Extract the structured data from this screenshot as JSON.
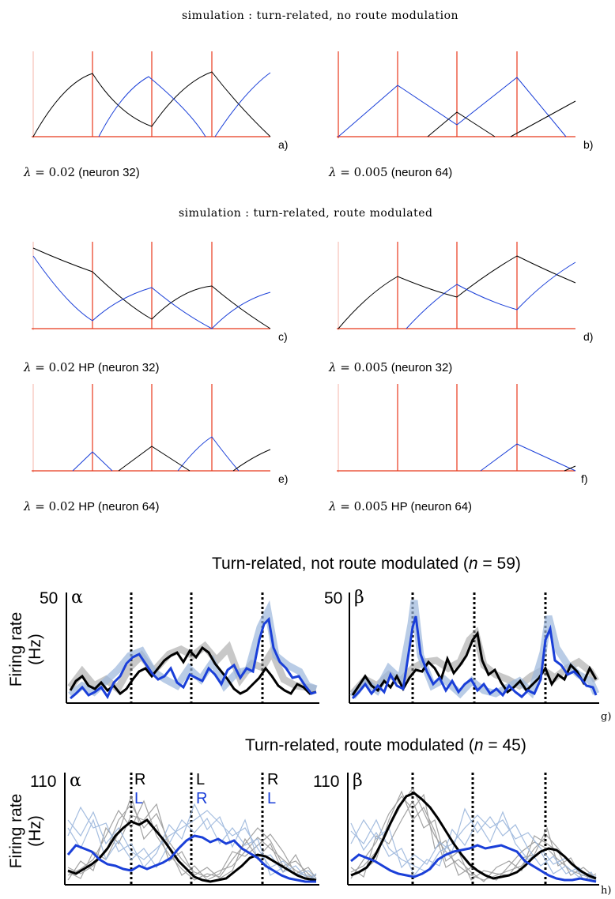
{
  "simulation": {
    "title_top": "simulation : turn-related, no route modulation",
    "title_mid": "simulation : turn-related, route modulated"
  },
  "panels": {
    "a": {
      "label": "a)",
      "caption_lambda": "λ",
      "caption_eq": " = ",
      "caption_value": "0.02",
      "caption_rest": " (neuron 32)"
    },
    "b": {
      "label": "b)",
      "caption_lambda": "λ",
      "caption_eq": " = ",
      "caption_value": "0.005",
      "caption_rest": " (neuron 64)"
    },
    "c": {
      "label": "c)",
      "caption_lambda": "λ",
      "caption_eq": " = ",
      "caption_value": "0.02",
      "caption_rest": " HP (neuron 32)"
    },
    "d": {
      "label": "d)",
      "caption_lambda": "λ",
      "caption_eq": " = ",
      "caption_value": "0.005",
      "caption_rest": " (neuron 32)"
    },
    "e": {
      "label": "e)",
      "caption_lambda": "λ",
      "caption_eq": " = ",
      "caption_value": "0.02",
      "caption_rest": " HP (neuron 64)"
    },
    "f": {
      "label": "f)",
      "caption_lambda": "λ",
      "caption_eq": " = ",
      "caption_value": "0.005",
      "caption_rest": " HP (neuron 64)"
    }
  },
  "recordings": {
    "g": {
      "title_prefix": "Turn-related, not route modulated (",
      "title_n": "n",
      "title_suffix": " = 59)",
      "ylabel_line1": "Firing rate",
      "ylabel_line2": "(Hz)",
      "ymax": "50",
      "left_greek": "α",
      "right_greek": "β",
      "label": "g)"
    },
    "h": {
      "title_prefix": "Turn-related, route modulated (",
      "title_n": "n",
      "title_suffix": " = 45)",
      "ylabel_line1": "Firing rate",
      "ylabel_line2": "(Hz)",
      "ymax": "110",
      "left_greek": "α",
      "right_greek": "β",
      "label": "h)",
      "turns_black": [
        "R",
        "L",
        "R"
      ],
      "turns_blue": [
        "L",
        "R",
        "L"
      ]
    }
  },
  "colors": {
    "black_series": "#000000",
    "blue_series": "#1a3fd8",
    "red_lines": "#e8371a",
    "grey_traces": "#8c8c8c",
    "lightblue_traces": "#9bb6dc"
  },
  "chart_data": [
    {
      "panel": "a",
      "type": "line",
      "x": [
        0,
        1,
        2,
        3,
        4
      ],
      "series": [
        {
          "values_black": [
            0,
            0.88,
            0.15,
            0.9,
            0.2
          ]
        },
        {
          "values_blue": [
            0,
            0.0,
            0.8,
            0.0,
            0.85
          ]
        }
      ]
    },
    {
      "panel": "b",
      "type": "line",
      "x": [
        0,
        1,
        2,
        3,
        4
      ],
      "series": [
        {
          "values_blue": [
            0,
            0.62,
            0.22,
            0.72,
            0.0
          ]
        },
        {
          "values_black": [
            0,
            0.0,
            0.3,
            0.0,
            0.45
          ]
        }
      ]
    },
    {
      "panel": "c",
      "type": "line",
      "x": [
        0,
        1,
        2,
        3,
        4
      ],
      "series": [
        {
          "values_black": [
            0.98,
            0.68,
            0.12,
            0.68,
            0.0
          ]
        },
        {
          "values_blue": [
            0.88,
            0.1,
            0.68,
            0.0,
            0.62
          ]
        }
      ]
    },
    {
      "panel": "d",
      "type": "line",
      "x": [
        0,
        1,
        2,
        3,
        4
      ],
      "series": [
        {
          "values_black": [
            0,
            0.62,
            0.42,
            0.88,
            0.62
          ]
        },
        {
          "values_blue": [
            0,
            0.0,
            0.58,
            0.3,
            0.82
          ]
        }
      ]
    },
    {
      "panel": "e",
      "type": "line",
      "x": [
        0,
        1,
        2,
        3,
        4
      ],
      "series": [
        {
          "values_blue": [
            0,
            0.22,
            0.0,
            0.5,
            0.0
          ]
        },
        {
          "values_black": [
            0,
            0.0,
            0.32,
            0.0,
            0.28
          ]
        }
      ]
    },
    {
      "panel": "f",
      "type": "line",
      "x": [
        0,
        1,
        2,
        3,
        4
      ],
      "series": [
        {
          "values_blue": [
            0,
            0.0,
            0.0,
            0.32,
            0.0
          ]
        }
      ]
    }
  ]
}
